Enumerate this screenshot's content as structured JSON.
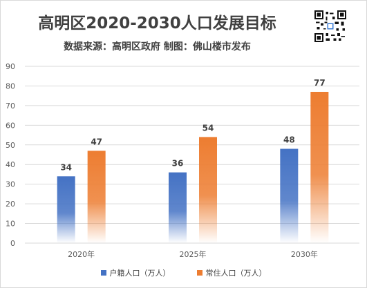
{
  "header": {
    "title": "高明区2020-2030人口发展目标",
    "subtitle": "数据来源：高明区政府 制图：佛山楼市发布"
  },
  "icons": {
    "qr": "qr-code-icon"
  },
  "colors": {
    "series1": "#4472c4",
    "series2": "#ed7d31",
    "grid": "#d9d9d9",
    "text": "#595959"
  },
  "chart_data": {
    "type": "bar",
    "categories": [
      "2020年",
      "2025年",
      "2030年"
    ],
    "series": [
      {
        "name": "户籍人口（万人）",
        "values": [
          34,
          36,
          48
        ]
      },
      {
        "name": "常住人口（万人）",
        "values": [
          47,
          54,
          77
        ]
      }
    ],
    "ylim": [
      0,
      90
    ],
    "yticks": [
      "0",
      "10",
      "20",
      "30",
      "40",
      "50",
      "60",
      "70",
      "80",
      "90"
    ],
    "grid": true,
    "legend": "bottom",
    "data_labels": true
  }
}
